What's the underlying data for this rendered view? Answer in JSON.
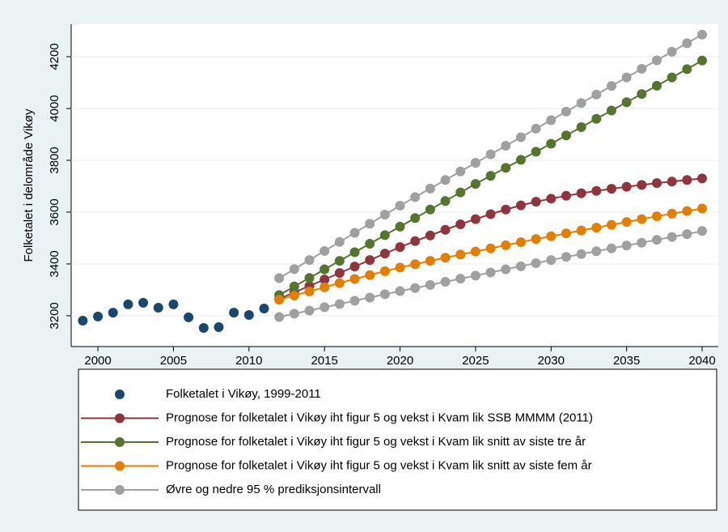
{
  "chart_data": {
    "type": "line",
    "y_label": "Folketalet i delområde Vikøy",
    "xlim": [
      1998.23,
      2041.07
    ],
    "ylim": [
      3081,
      4325
    ],
    "xticks": [
      2000,
      2005,
      2010,
      2015,
      2020,
      2025,
      2030,
      2035,
      2040
    ],
    "yticks": [
      3200,
      3400,
      3600,
      3800,
      4000,
      4200
    ],
    "grid": true,
    "series": [
      {
        "name": "Folketalet i Vikøy, 1999-2011",
        "color": "#1a476f",
        "style": "scatter",
        "x": [
          1999,
          2000,
          2001,
          2002,
          2003,
          2004,
          2005,
          2006,
          2007,
          2008,
          2009,
          2010,
          2011
        ],
        "values": [
          3181,
          3197,
          3212,
          3244,
          3250,
          3231,
          3244,
          3194,
          3153,
          3156,
          3212,
          3203,
          3228
        ]
      },
      {
        "name": "Prognose for folketalet i Vikøy iht figur 5 og vekst i Kvam lik SSB MMMM (2011)",
        "color": "#90353b",
        "style": "connected",
        "x": [
          2012,
          2013,
          2014,
          2015,
          2016,
          2017,
          2018,
          2019,
          2020,
          2021,
          2022,
          2023,
          2024,
          2025,
          2026,
          2027,
          2028,
          2029,
          2030,
          2031,
          2032,
          2033,
          2034,
          2035,
          2036,
          2037,
          2038,
          2039,
          2040
        ],
        "values": [
          3265,
          3290,
          3315,
          3340,
          3365,
          3390,
          3415,
          3440,
          3465,
          3488,
          3510,
          3532,
          3553,
          3573,
          3592,
          3610,
          3626,
          3640,
          3652,
          3663,
          3673,
          3682,
          3690,
          3698,
          3705,
          3712,
          3718,
          3724,
          3730
        ]
      },
      {
        "name": "Prognose for folketalet i Vikøy iht figur 5 og vekst i Kvam lik snitt av siste tre år",
        "color": "#55752f",
        "style": "connected",
        "x": [
          2012,
          2013,
          2014,
          2015,
          2016,
          2017,
          2018,
          2019,
          2020,
          2021,
          2022,
          2023,
          2024,
          2025,
          2026,
          2027,
          2028,
          2029,
          2030,
          2031,
          2032,
          2033,
          2034,
          2035,
          2036,
          2037,
          2038,
          2039,
          2040
        ],
        "values": [
          3280,
          3313,
          3346,
          3379,
          3412,
          3445,
          3478,
          3511,
          3544,
          3577,
          3610,
          3643,
          3676,
          3709,
          3740,
          3771,
          3802,
          3833,
          3864,
          3896,
          3928,
          3960,
          3992,
          4024,
          4056,
          4088,
          4120,
          4152,
          4185
        ]
      },
      {
        "name": "Prognose for folketalet i Vikøy iht figur 5 og vekst i Kvam lik snitt av siste fem år",
        "color": "#e37e00",
        "style": "connected",
        "x": [
          2012,
          2013,
          2014,
          2015,
          2016,
          2017,
          2018,
          2019,
          2020,
          2021,
          2022,
          2023,
          2024,
          2025,
          2026,
          2027,
          2028,
          2029,
          2030,
          2031,
          2032,
          2033,
          2034,
          2035,
          2036,
          2037,
          2038,
          2039,
          2040
        ],
        "values": [
          3262,
          3278,
          3294,
          3310,
          3326,
          3342,
          3357,
          3372,
          3386,
          3399,
          3412,
          3424,
          3436,
          3448,
          3460,
          3472,
          3484,
          3496,
          3507,
          3518,
          3529,
          3540,
          3551,
          3562,
          3573,
          3584,
          3594,
          3604,
          3614
        ]
      },
      {
        "name": "Øvre og nedre 95 % prediksjonsintervall",
        "color": "#a0a0a0",
        "style": "connected",
        "x": [
          2012,
          2013,
          2014,
          2015,
          2016,
          2017,
          2018,
          2019,
          2020,
          2021,
          2022,
          2023,
          2024,
          2025,
          2026,
          2027,
          2028,
          2029,
          2030,
          2031,
          2032,
          2033,
          2034,
          2035,
          2036,
          2037,
          2038,
          2039,
          2040
        ],
        "values": [
          3195,
          3208,
          3220,
          3233,
          3245,
          3258,
          3270,
          3283,
          3295,
          3307,
          3319,
          3331,
          3343,
          3355,
          3367,
          3379,
          3391,
          3403,
          3415,
          3427,
          3438,
          3449,
          3460,
          3471,
          3482,
          3493,
          3504,
          3515,
          3527
        ],
        "upper": [
          3345,
          3380,
          3415,
          3450,
          3485,
          3520,
          3555,
          3590,
          3625,
          3658,
          3691,
          3724,
          3757,
          3790,
          3823,
          3856,
          3889,
          3922,
          3955,
          3988,
          4021,
          4054,
          4087,
          4120,
          4153,
          4186,
          4219,
          4252,
          4285
        ]
      }
    ]
  }
}
